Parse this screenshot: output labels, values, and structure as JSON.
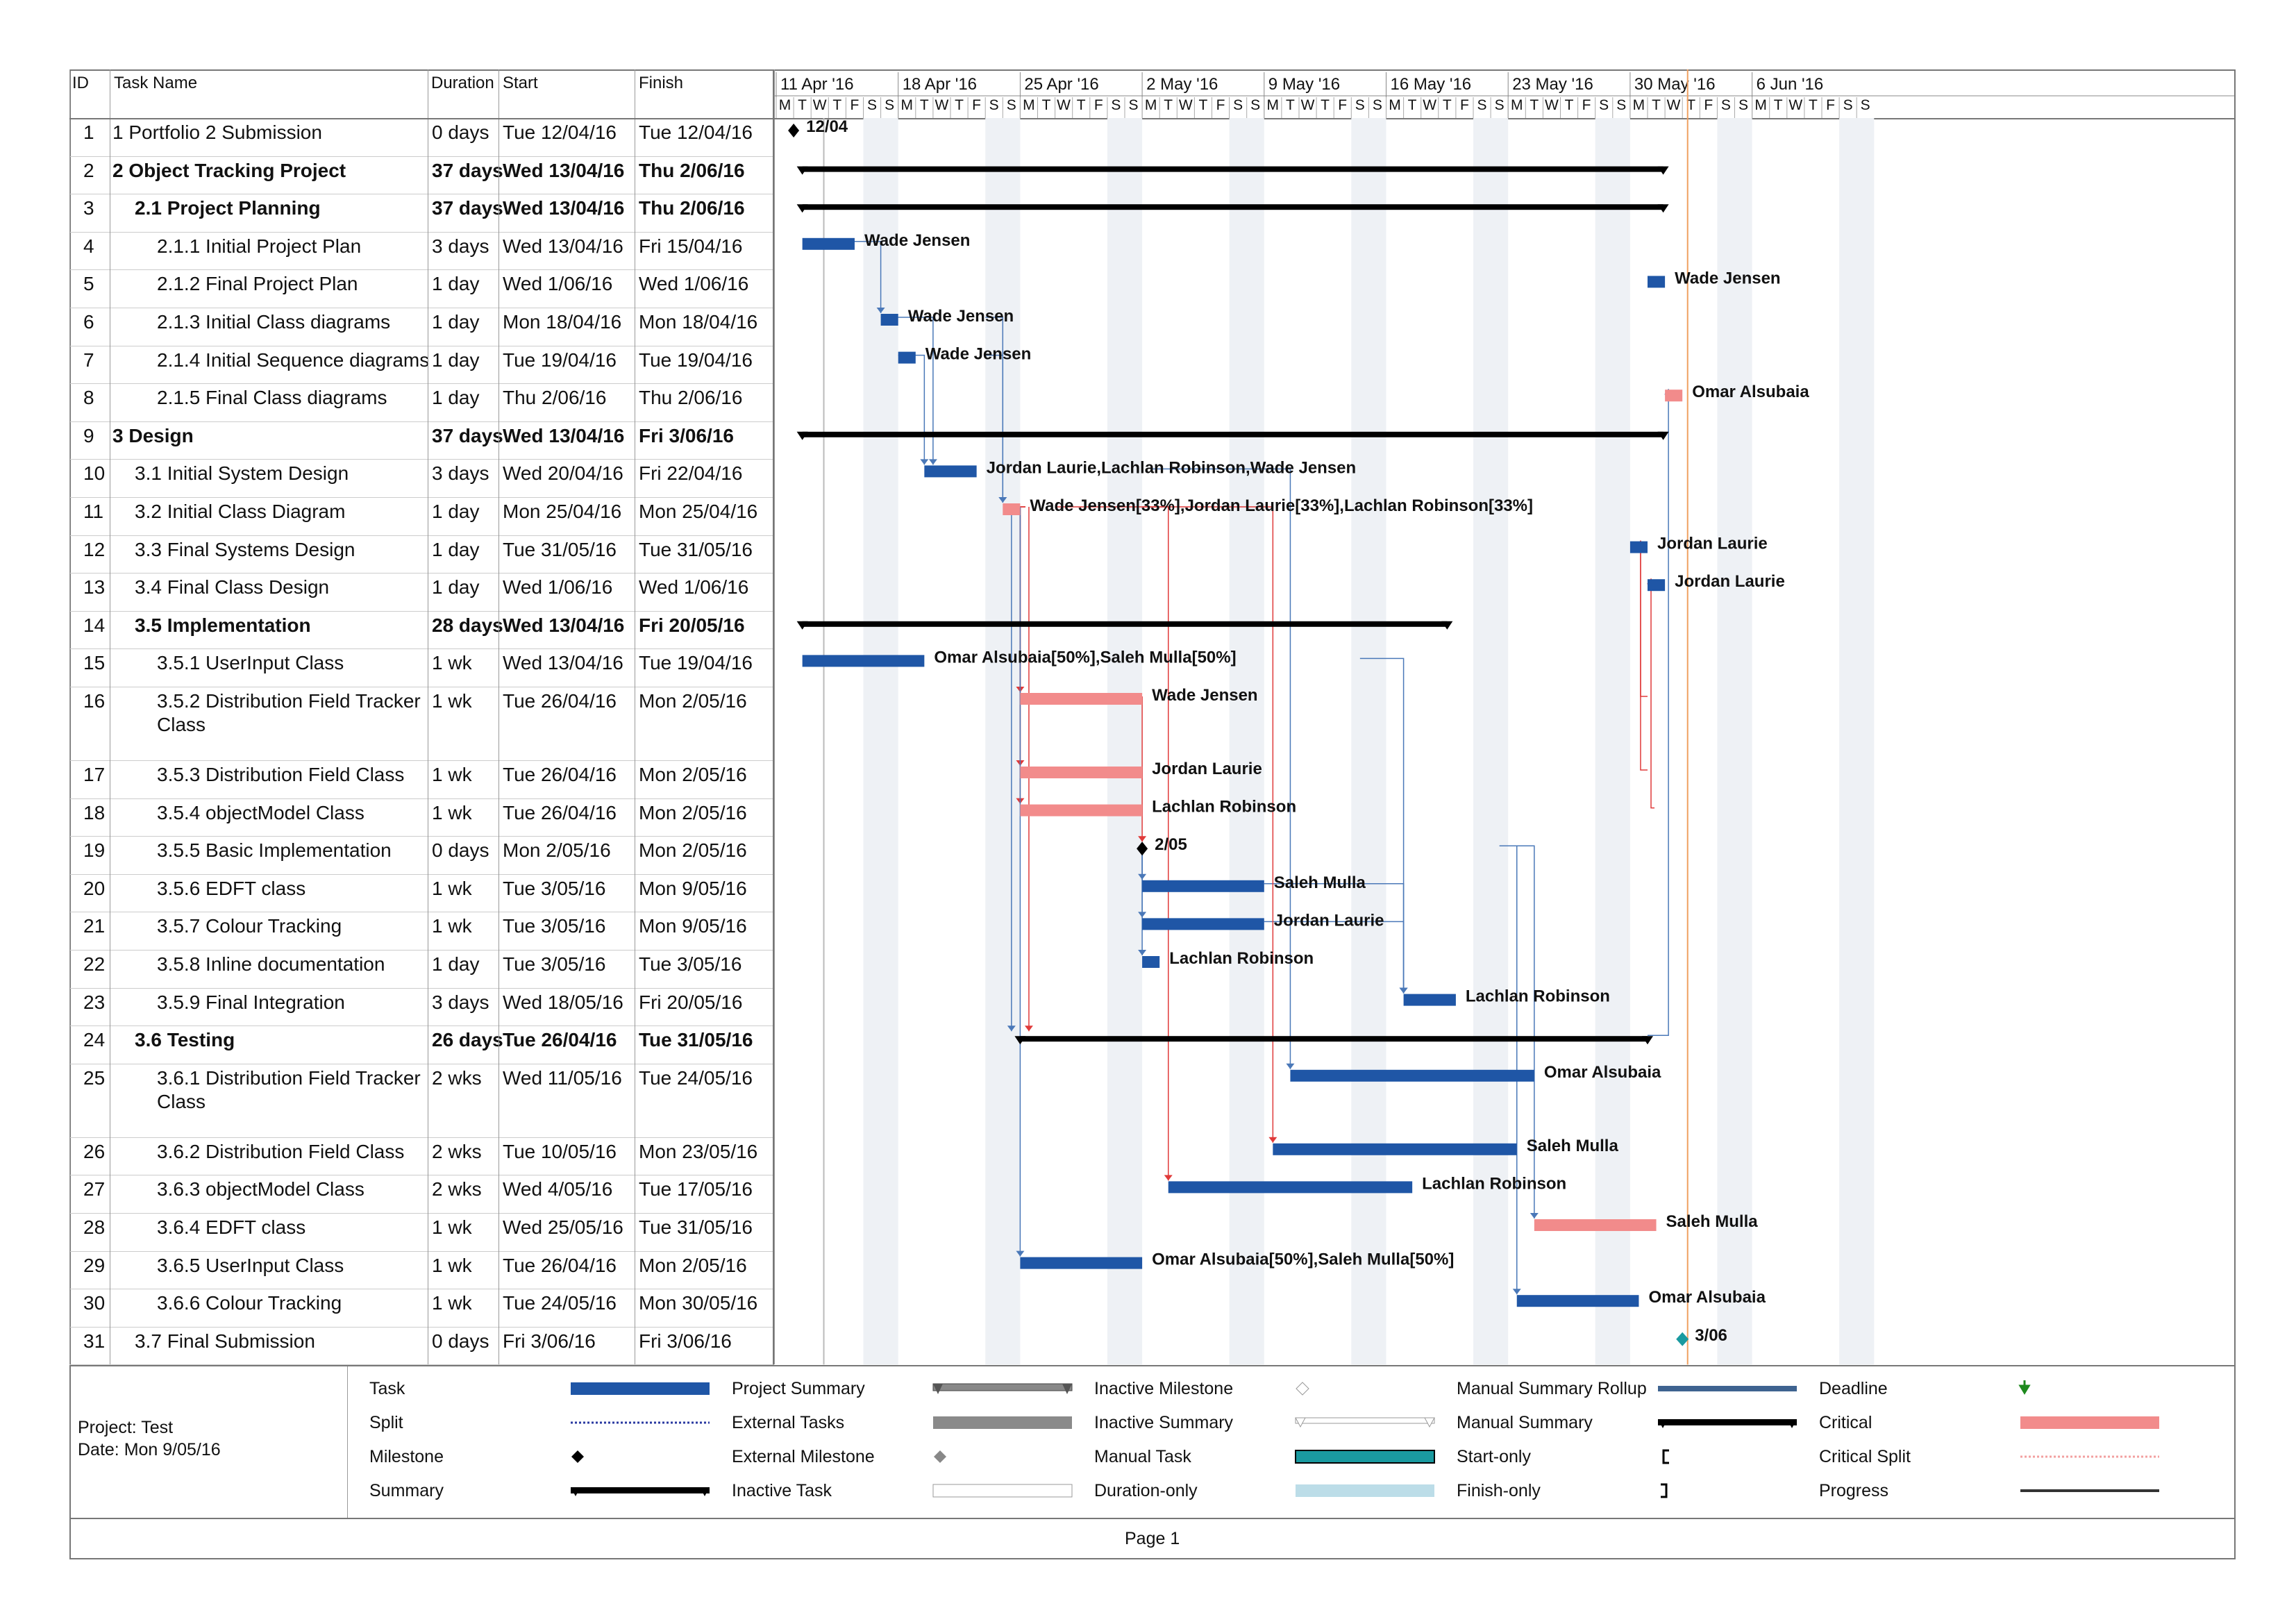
{
  "columns": {
    "id": "ID",
    "name": "Task Name",
    "duration": "Duration",
    "start": "Start",
    "finish": "Finish"
  },
  "timescale": {
    "weeks": [
      "11 Apr '16",
      "18 Apr '16",
      "25 Apr '16",
      "2 May '16",
      "9 May '16",
      "16 May '16",
      "23 May '16",
      "30 May '16",
      "6 Jun '16"
    ],
    "day_letters": [
      "M",
      "T",
      "W",
      "T",
      "F",
      "S",
      "S"
    ]
  },
  "tasks": [
    {
      "id": "1",
      "name": "1 Portfolio 2 Submission",
      "duration": "0 days",
      "start": "Tue 12/04/16",
      "finish": "Tue 12/04/16",
      "indent": 0,
      "bold": false
    },
    {
      "id": "2",
      "name": "2 Object Tracking Project",
      "duration": "37 days",
      "start": "Wed 13/04/16",
      "finish": "Thu 2/06/16",
      "indent": 0,
      "bold": true
    },
    {
      "id": "3",
      "name": "2.1 Project Planning",
      "duration": "37 days",
      "start": "Wed 13/04/16",
      "finish": "Thu 2/06/16",
      "indent": 1,
      "bold": true
    },
    {
      "id": "4",
      "name": "2.1.1 Initial Project Plan",
      "duration": "3 days",
      "start": "Wed 13/04/16",
      "finish": "Fri 15/04/16",
      "indent": 2,
      "bold": false
    },
    {
      "id": "5",
      "name": "2.1.2 Final Project Plan",
      "duration": "1 day",
      "start": "Wed 1/06/16",
      "finish": "Wed 1/06/16",
      "indent": 2,
      "bold": false
    },
    {
      "id": "6",
      "name": "2.1.3 Initial Class diagrams",
      "duration": "1 day",
      "start": "Mon 18/04/16",
      "finish": "Mon 18/04/16",
      "indent": 2,
      "bold": false
    },
    {
      "id": "7",
      "name": "2.1.4 Initial Sequence diagrams",
      "duration": "1 day",
      "start": "Tue 19/04/16",
      "finish": "Tue 19/04/16",
      "indent": 2,
      "bold": false
    },
    {
      "id": "8",
      "name": "2.1.5 Final Class diagrams",
      "duration": "1 day",
      "start": "Thu 2/06/16",
      "finish": "Thu 2/06/16",
      "indent": 2,
      "bold": false
    },
    {
      "id": "9",
      "name": "3 Design",
      "duration": "37 days",
      "start": "Wed 13/04/16",
      "finish": "Fri 3/06/16",
      "indent": 0,
      "bold": true
    },
    {
      "id": "10",
      "name": "3.1 Initial System Design",
      "duration": "3 days",
      "start": "Wed 20/04/16",
      "finish": "Fri 22/04/16",
      "indent": 1,
      "bold": false
    },
    {
      "id": "11",
      "name": "3.2 Initial Class Diagram",
      "duration": "1 day",
      "start": "Mon 25/04/16",
      "finish": "Mon 25/04/16",
      "indent": 1,
      "bold": false
    },
    {
      "id": "12",
      "name": "3.3 Final Systems Design",
      "duration": "1 day",
      "start": "Tue 31/05/16",
      "finish": "Tue 31/05/16",
      "indent": 1,
      "bold": false
    },
    {
      "id": "13",
      "name": "3.4 Final Class Design",
      "duration": "1 day",
      "start": "Wed 1/06/16",
      "finish": "Wed 1/06/16",
      "indent": 1,
      "bold": false
    },
    {
      "id": "14",
      "name": "3.5 Implementation",
      "duration": "28 days",
      "start": "Wed 13/04/16",
      "finish": "Fri 20/05/16",
      "indent": 1,
      "bold": true
    },
    {
      "id": "15",
      "name": "3.5.1 UserInput Class",
      "duration": "1 wk",
      "start": "Wed 13/04/16",
      "finish": "Tue 19/04/16",
      "indent": 2,
      "bold": false
    },
    {
      "id": "16",
      "name": "3.5.2 Distribution Field Tracker Class",
      "duration": "1 wk",
      "start": "Tue 26/04/16",
      "finish": "Mon 2/05/16",
      "indent": 2,
      "bold": false
    },
    {
      "id": "17",
      "name": "3.5.3 Distribution Field Class",
      "duration": "1 wk",
      "start": "Tue 26/04/16",
      "finish": "Mon 2/05/16",
      "indent": 2,
      "bold": false
    },
    {
      "id": "18",
      "name": "3.5.4 objectModel Class",
      "duration": "1 wk",
      "start": "Tue 26/04/16",
      "finish": "Mon 2/05/16",
      "indent": 2,
      "bold": false
    },
    {
      "id": "19",
      "name": "3.5.5 Basic Implementation",
      "duration": "0 days",
      "start": "Mon 2/05/16",
      "finish": "Mon 2/05/16",
      "indent": 2,
      "bold": false
    },
    {
      "id": "20",
      "name": "3.5.6 EDFT class",
      "duration": "1 wk",
      "start": "Tue 3/05/16",
      "finish": "Mon 9/05/16",
      "indent": 2,
      "bold": false
    },
    {
      "id": "21",
      "name": "3.5.7 Colour Tracking",
      "duration": "1 wk",
      "start": "Tue 3/05/16",
      "finish": "Mon 9/05/16",
      "indent": 2,
      "bold": false
    },
    {
      "id": "22",
      "name": "3.5.8 Inline documentation",
      "duration": "1 day",
      "start": "Tue 3/05/16",
      "finish": "Tue 3/05/16",
      "indent": 2,
      "bold": false
    },
    {
      "id": "23",
      "name": "3.5.9 Final Integration",
      "duration": "3 days",
      "start": "Wed 18/05/16",
      "finish": "Fri 20/05/16",
      "indent": 2,
      "bold": false
    },
    {
      "id": "24",
      "name": "3.6 Testing",
      "duration": "26 days",
      "start": "Tue 26/04/16",
      "finish": "Tue 31/05/16",
      "indent": 1,
      "bold": true
    },
    {
      "id": "25",
      "name": "3.6.1 Distribution Field Tracker Class",
      "duration": "2 wks",
      "start": "Wed 11/05/16",
      "finish": "Tue 24/05/16",
      "indent": 2,
      "bold": false
    },
    {
      "id": "26",
      "name": "3.6.2 Distribution Field Class",
      "duration": "2 wks",
      "start": "Tue 10/05/16",
      "finish": "Mon 23/05/16",
      "indent": 2,
      "bold": false
    },
    {
      "id": "27",
      "name": "3.6.3 objectModel Class",
      "duration": "2 wks",
      "start": "Wed 4/05/16",
      "finish": "Tue 17/05/16",
      "indent": 2,
      "bold": false
    },
    {
      "id": "28",
      "name": "3.6.4 EDFT class",
      "duration": "1 wk",
      "start": "Wed 25/05/16",
      "finish": "Tue 31/05/16",
      "indent": 2,
      "bold": false
    },
    {
      "id": "29",
      "name": "3.6.5 UserInput Class",
      "duration": "1 wk",
      "start": "Tue 26/04/16",
      "finish": "Mon 2/05/16",
      "indent": 2,
      "bold": false
    },
    {
      "id": "30",
      "name": "3.6.6 Colour Tracking",
      "duration": "1 wk",
      "start": "Tue 24/05/16",
      "finish": "Mon 30/05/16",
      "indent": 2,
      "bold": false
    },
    {
      "id": "31",
      "name": "3.7 Final Submission",
      "duration": "0 days",
      "start": "Fri 3/06/16",
      "finish": "Fri 3/06/16",
      "indent": 1,
      "bold": false
    }
  ],
  "gantt": {
    "bars": [
      {
        "row": 1,
        "type": "milestone",
        "day": 1,
        "label": "12/04"
      },
      {
        "row": 2,
        "type": "summary",
        "from": 1.5,
        "to": 50.9
      },
      {
        "row": 3,
        "type": "summary",
        "from": 1.5,
        "to": 50.9
      },
      {
        "row": 4,
        "type": "task",
        "from": 1.5,
        "to": 4.5,
        "label": "Wade Jensen"
      },
      {
        "row": 5,
        "type": "task",
        "from": 50,
        "to": 51,
        "label": "Wade Jensen"
      },
      {
        "row": 6,
        "type": "task",
        "from": 6,
        "to": 7,
        "label": "Wade Jensen"
      },
      {
        "row": 7,
        "type": "task",
        "from": 7,
        "to": 8,
        "label": "Wade Jensen"
      },
      {
        "row": 8,
        "type": "critical",
        "from": 51,
        "to": 52,
        "label": "Omar Alsubaia"
      },
      {
        "row": 9,
        "type": "summary",
        "from": 1.5,
        "to": 50.9
      },
      {
        "row": 10,
        "type": "task",
        "from": 8.5,
        "to": 11.5,
        "label": "Jordan Laurie,Lachlan Robinson,Wade Jensen"
      },
      {
        "row": 11,
        "type": "critical",
        "from": 13,
        "to": 14,
        "label": "Wade Jensen[33%],Jordan Laurie[33%],Lachlan Robinson[33%]"
      },
      {
        "row": 12,
        "type": "task",
        "from": 49,
        "to": 50,
        "label": "Jordan Laurie"
      },
      {
        "row": 13,
        "type": "task",
        "from": 50,
        "to": 51,
        "label": "Jordan Laurie"
      },
      {
        "row": 14,
        "type": "summary",
        "from": 1.5,
        "to": 38.5
      },
      {
        "row": 15,
        "type": "task",
        "from": 1.5,
        "to": 8.5,
        "label": "Omar Alsubaia[50%],Saleh Mulla[50%]"
      },
      {
        "row": 16,
        "type": "critical",
        "from": 14,
        "to": 21,
        "label": "Wade Jensen"
      },
      {
        "row": 17,
        "type": "critical",
        "from": 14,
        "to": 21,
        "label": "Jordan Laurie"
      },
      {
        "row": 18,
        "type": "critical",
        "from": 14,
        "to": 21,
        "label": "Lachlan Robinson"
      },
      {
        "row": 19,
        "type": "milestone",
        "day": 21,
        "label": "2/05"
      },
      {
        "row": 20,
        "type": "task",
        "from": 21,
        "to": 28,
        "label": "Saleh Mulla"
      },
      {
        "row": 21,
        "type": "task",
        "from": 21,
        "to": 28,
        "label": "Jordan Laurie"
      },
      {
        "row": 22,
        "type": "task",
        "from": 21,
        "to": 22,
        "label": "Lachlan Robinson"
      },
      {
        "row": 23,
        "type": "task",
        "from": 36,
        "to": 39,
        "label": "Lachlan Robinson"
      },
      {
        "row": 24,
        "type": "summary",
        "from": 14,
        "to": 50,
        "label": ""
      },
      {
        "row": 25,
        "type": "task",
        "from": 29.5,
        "to": 43.5,
        "label": "Omar Alsubaia"
      },
      {
        "row": 26,
        "type": "task",
        "from": 28.5,
        "to": 42.5,
        "label": "Saleh Mulla"
      },
      {
        "row": 27,
        "type": "task",
        "from": 22.5,
        "to": 36.5,
        "label": "Lachlan Robinson"
      },
      {
        "row": 28,
        "type": "critical",
        "from": 43.5,
        "to": 50.5,
        "label": "Saleh Mulla"
      },
      {
        "row": 29,
        "type": "task",
        "from": 14,
        "to": 21,
        "label": "Omar Alsubaia[50%],Saleh Mulla[50%]"
      },
      {
        "row": 30,
        "type": "task",
        "from": 42.5,
        "to": 49.5,
        "label": "Omar Alsubaia"
      },
      {
        "row": 31,
        "type": "milestone-final",
        "day": 52,
        "label": "3/06"
      }
    ]
  },
  "footer": {
    "project": "Project: Test",
    "date": "Date: Mon 9/05/16",
    "page": "Page 1"
  },
  "legend": [
    {
      "label": "Task",
      "symbol": "task"
    },
    {
      "label": "Split",
      "symbol": "split"
    },
    {
      "label": "Milestone",
      "symbol": "milestone"
    },
    {
      "label": "Summary",
      "symbol": "summary"
    },
    {
      "label": "Project Summary",
      "symbol": "project-summary"
    },
    {
      "label": "External Tasks",
      "symbol": "external-tasks"
    },
    {
      "label": "External Milestone",
      "symbol": "external-milestone"
    },
    {
      "label": "Inactive Task",
      "symbol": "inactive-task"
    },
    {
      "label": "Inactive Milestone",
      "symbol": "inactive-milestone"
    },
    {
      "label": "Inactive Summary",
      "symbol": "inactive-summary"
    },
    {
      "label": "Manual Task",
      "symbol": "manual-task"
    },
    {
      "label": "Duration-only",
      "symbol": "duration-only"
    },
    {
      "label": "Manual Summary Rollup",
      "symbol": "manual-summary-rollup"
    },
    {
      "label": "Manual Summary",
      "symbol": "manual-summary"
    },
    {
      "label": "Start-only",
      "symbol": "start-only"
    },
    {
      "label": "Finish-only",
      "symbol": "finish-only"
    },
    {
      "label": "Deadline",
      "symbol": "deadline"
    },
    {
      "label": "Critical",
      "symbol": "critical"
    },
    {
      "label": "Critical Split",
      "symbol": "critical-split"
    },
    {
      "label": "Progress",
      "symbol": "progress"
    }
  ],
  "colors": {
    "task": "#1F56A6",
    "critical": "#F28B8B",
    "summary": "#000000",
    "weekend": "#EEF1F5",
    "deadline": "#1E8A1E",
    "milestone_final": "#1A9AA0",
    "link_blue": "#4A78B8",
    "link_red": "#E03A3A"
  }
}
